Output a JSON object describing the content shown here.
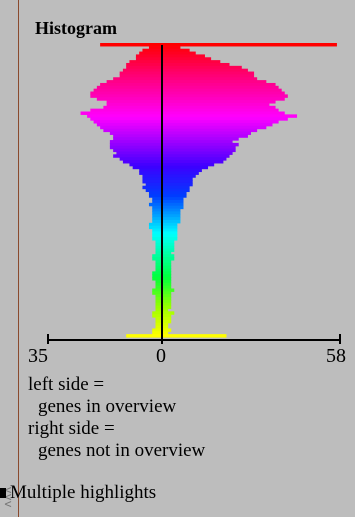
{
  "panel_title": "Histogram",
  "axis": {
    "left_label": "35",
    "center_label": "0",
    "right_label": "58"
  },
  "legend": {
    "line1": "left side =",
    "line2": "genes in overview",
    "line3": "right side =",
    "line4": "genes not in overview"
  },
  "multi_highlight_label": "Multiple highlights",
  "chart_data": {
    "type": "bar",
    "orientation": "horizontal-mirrored",
    "title": "Histogram",
    "xlim_left": 35,
    "xlim_right": 58,
    "left_values": [
      19,
      4,
      6,
      7,
      8,
      8,
      10,
      11,
      11,
      12,
      13,
      13,
      15,
      17,
      19,
      20,
      21,
      22,
      22,
      20,
      17,
      17,
      18,
      22,
      25,
      23,
      22,
      21,
      20,
      19,
      18,
      16,
      15,
      15,
      16,
      16,
      16,
      15,
      14,
      15,
      13,
      12,
      10,
      9,
      7,
      7,
      6,
      6,
      6,
      5,
      6,
      5,
      4,
      4,
      3,
      3,
      4,
      3,
      3,
      3,
      3,
      3,
      3,
      4,
      4,
      3,
      3,
      3,
      3,
      2,
      2,
      2,
      2,
      2,
      3,
      3,
      2,
      2,
      2,
      2,
      3,
      3,
      3,
      2,
      2,
      2,
      3,
      3,
      2,
      2,
      2,
      2,
      2,
      2,
      3,
      3,
      2,
      2,
      2,
      2,
      3,
      3,
      11
    ],
    "right_values": [
      57,
      6,
      9,
      11,
      14,
      16,
      19,
      22,
      26,
      28,
      30,
      30,
      31,
      34,
      37,
      38,
      39,
      40,
      41,
      40,
      37,
      35,
      37,
      38,
      40,
      44,
      41,
      38,
      36,
      34,
      31,
      29,
      28,
      25,
      23,
      25,
      24,
      24,
      23,
      22,
      21,
      20,
      17,
      15,
      13,
      12,
      11,
      10,
      10,
      10,
      9,
      9,
      8,
      8,
      7,
      7,
      7,
      7,
      6,
      6,
      6,
      6,
      6,
      5,
      5,
      5,
      5,
      5,
      5,
      4,
      4,
      4,
      4,
      3,
      4,
      4,
      3,
      3,
      3,
      3,
      3,
      3,
      3,
      3,
      3,
      3,
      4,
      3,
      3,
      3,
      3,
      3,
      3,
      2,
      4,
      3,
      3,
      3,
      2,
      2,
      3,
      2,
      21
    ]
  }
}
